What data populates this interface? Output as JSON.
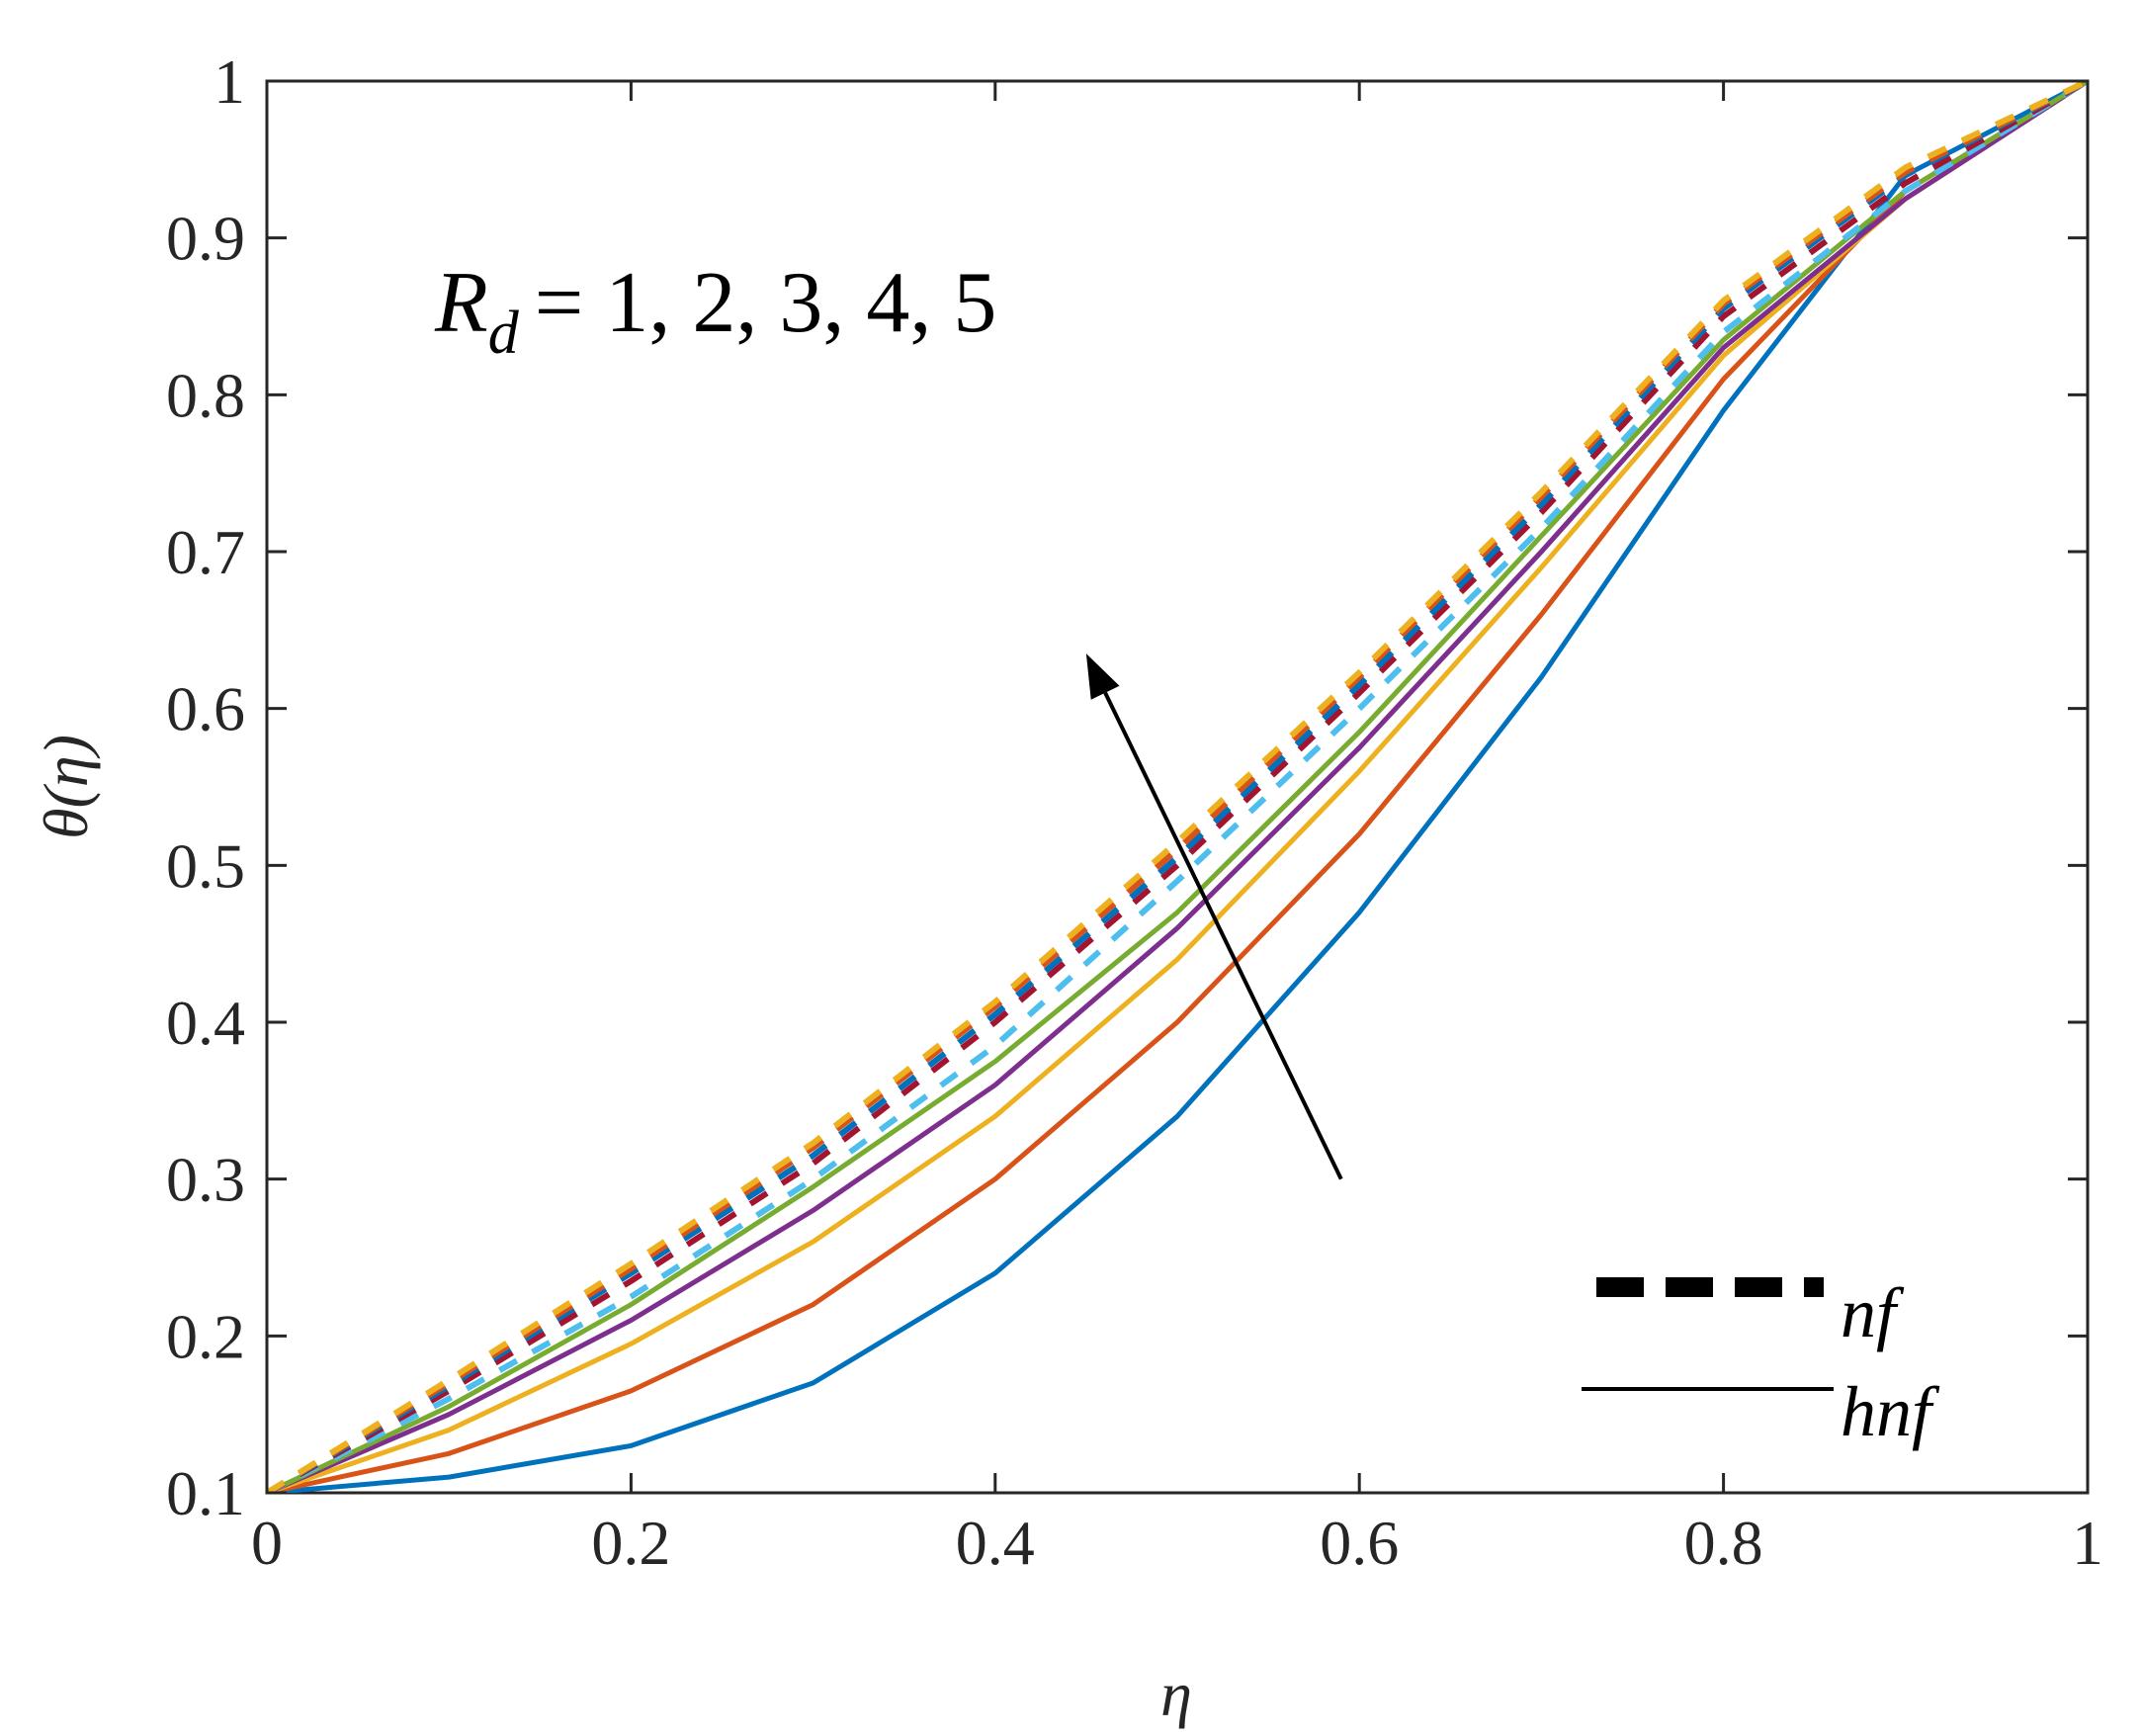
{
  "chart_data": {
    "type": "line",
    "title": "",
    "xlabel": "η",
    "ylabel": "θ(η)",
    "xlim": [
      0,
      1
    ],
    "ylim": [
      0.1,
      1
    ],
    "x_ticks": [
      "0",
      "0.2",
      "0.4",
      "0.6",
      "0.8",
      "1"
    ],
    "y_ticks": [
      "0.1",
      "0.2",
      "0.3",
      "0.4",
      "0.5",
      "0.6",
      "0.7",
      "0.8",
      "0.9",
      "1"
    ],
    "grid": false,
    "annotation": {
      "symbol": "R",
      "subscript": "d",
      "text": "= 1, 2, 3, 4, 5",
      "arrow_from": [
        0.59,
        0.3
      ],
      "arrow_to": [
        0.45,
        0.635
      ],
      "arrow_direction": "increasing Rd"
    },
    "legend": {
      "placement": "bottom-right",
      "entries": [
        {
          "label": "nf",
          "style": "dashed"
        },
        {
          "label": "hnf",
          "style": "solid"
        }
      ]
    },
    "x": [
      0,
      0.1,
      0.2,
      0.3,
      0.4,
      0.5,
      0.6,
      0.7,
      0.8,
      0.9,
      1.0
    ],
    "series": [
      {
        "name": "hnf, Rd=1",
        "style": "solid",
        "color": "#0072BD",
        "values": [
          0.1,
          0.11,
          0.13,
          0.17,
          0.24,
          0.34,
          0.47,
          0.62,
          0.79,
          0.94,
          1.0
        ]
      },
      {
        "name": "hnf, Rd=2",
        "style": "solid",
        "color": "#D95319",
        "values": [
          0.1,
          0.125,
          0.165,
          0.22,
          0.3,
          0.4,
          0.52,
          0.66,
          0.81,
          0.93,
          1.0
        ]
      },
      {
        "name": "hnf, Rd=3",
        "style": "solid",
        "color": "#EDB120",
        "values": [
          0.1,
          0.14,
          0.195,
          0.26,
          0.34,
          0.44,
          0.56,
          0.69,
          0.825,
          0.925,
          1.0
        ]
      },
      {
        "name": "hnf, Rd=4",
        "style": "solid",
        "color": "#7E2F8E",
        "values": [
          0.1,
          0.15,
          0.21,
          0.28,
          0.36,
          0.46,
          0.575,
          0.7,
          0.83,
          0.925,
          1.0
        ]
      },
      {
        "name": "hnf, Rd=5",
        "style": "solid",
        "color": "#77AC30",
        "values": [
          0.1,
          0.155,
          0.22,
          0.295,
          0.375,
          0.47,
          0.585,
          0.71,
          0.835,
          0.93,
          1.0
        ]
      },
      {
        "name": "nf, Rd=1",
        "style": "dashed",
        "color": "#4DBEEE",
        "values": [
          0.1,
          0.16,
          0.225,
          0.3,
          0.385,
          0.49,
          0.6,
          0.715,
          0.84,
          0.93,
          1.0
        ]
      },
      {
        "name": "nf, Rd=2",
        "style": "dashed",
        "color": "#A2142F",
        "values": [
          0.1,
          0.165,
          0.235,
          0.31,
          0.4,
          0.5,
          0.61,
          0.725,
          0.85,
          0.935,
          1.0
        ]
      },
      {
        "name": "nf, Rd=3",
        "style": "dashed",
        "color": "#0072BD",
        "values": [
          0.1,
          0.168,
          0.24,
          0.315,
          0.405,
          0.505,
          0.615,
          0.73,
          0.855,
          0.94,
          1.0
        ]
      },
      {
        "name": "nf, Rd=4",
        "style": "dashed",
        "color": "#D95319",
        "values": [
          0.1,
          0.17,
          0.243,
          0.32,
          0.41,
          0.51,
          0.62,
          0.735,
          0.858,
          0.942,
          1.0
        ]
      },
      {
        "name": "nf, Rd=5",
        "style": "dashed",
        "color": "#EDB120",
        "values": [
          0.1,
          0.172,
          0.246,
          0.323,
          0.413,
          0.515,
          0.623,
          0.738,
          0.86,
          0.945,
          1.0
        ]
      }
    ]
  }
}
